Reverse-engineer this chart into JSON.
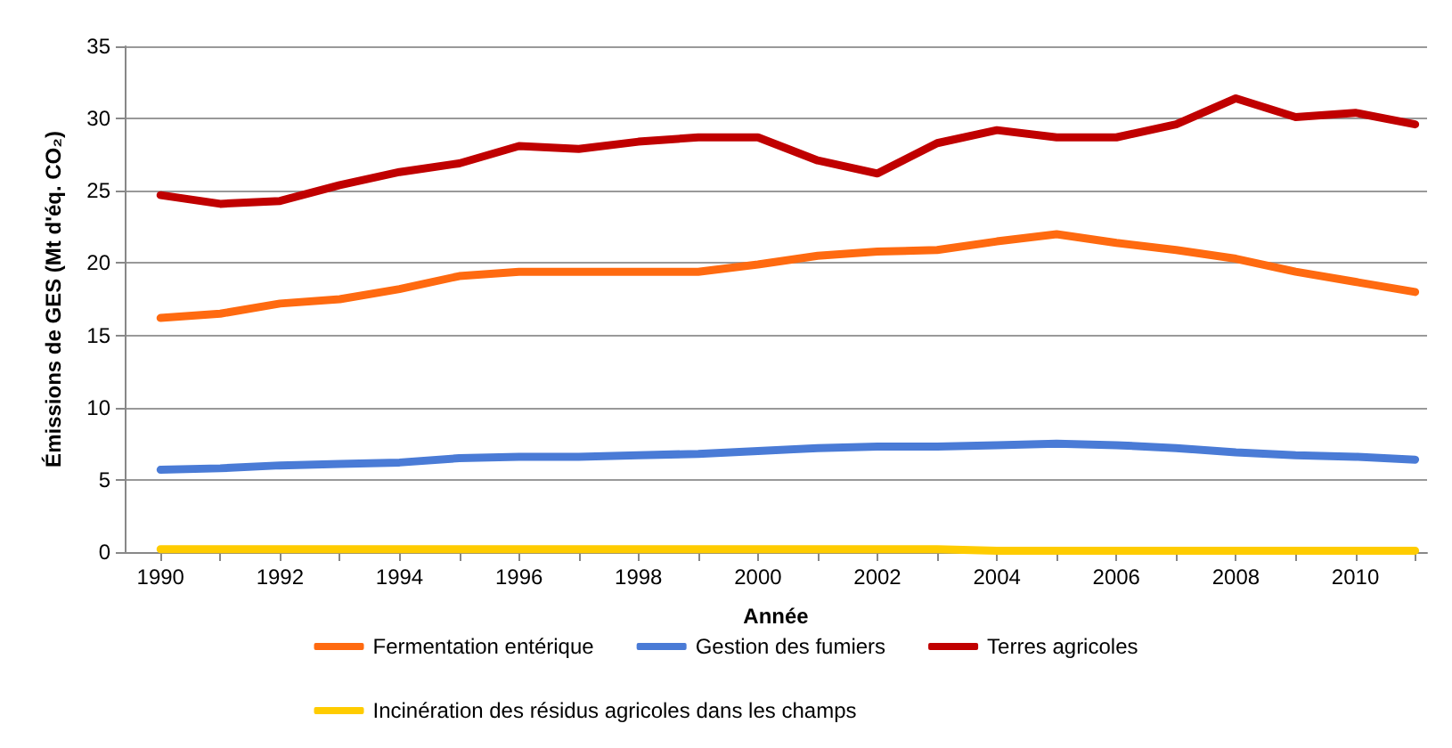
{
  "chart_data": {
    "type": "line",
    "xlabel": "Année",
    "ylabel": "Émissions de GES (Mt d'éq. CO₂)",
    "x": [
      1990,
      1991,
      1992,
      1993,
      1994,
      1995,
      1996,
      1997,
      1998,
      1999,
      2000,
      2001,
      2002,
      2003,
      2004,
      2005,
      2006,
      2007,
      2008,
      2009,
      2010,
      2011
    ],
    "series": [
      {
        "name": "Fermentation entérique",
        "color": "#ff6a10",
        "values": [
          16.2,
          16.5,
          17.2,
          17.5,
          18.2,
          19.1,
          19.4,
          19.4,
          19.4,
          19.4,
          19.9,
          20.5,
          20.8,
          20.9,
          21.5,
          22.0,
          21.4,
          20.9,
          20.3,
          19.4,
          18.7,
          18.0
        ]
      },
      {
        "name": "Gestion des fumiers",
        "color": "#4a7bd6",
        "values": [
          5.7,
          5.8,
          6.0,
          6.1,
          6.2,
          6.5,
          6.6,
          6.6,
          6.7,
          6.8,
          7.0,
          7.2,
          7.3,
          7.3,
          7.4,
          7.5,
          7.4,
          7.2,
          6.9,
          6.7,
          6.6,
          6.4
        ]
      },
      {
        "name": "Terres agricoles",
        "color": "#c00000",
        "values": [
          24.7,
          24.1,
          24.3,
          25.4,
          26.3,
          26.9,
          28.1,
          27.9,
          28.4,
          28.7,
          28.7,
          27.1,
          26.2,
          28.3,
          29.2,
          28.7,
          28.7,
          29.6,
          31.4,
          30.1,
          30.4,
          29.6
        ]
      },
      {
        "name": "Incinération des résidus agricoles dans les champs",
        "color": "#ffcc00",
        "values": [
          0.2,
          0.2,
          0.2,
          0.2,
          0.2,
          0.2,
          0.2,
          0.2,
          0.2,
          0.2,
          0.2,
          0.2,
          0.2,
          0.2,
          0.1,
          0.1,
          0.1,
          0.1,
          0.1,
          0.1,
          0.1,
          0.1
        ]
      }
    ],
    "xlim": [
      1989.4,
      2011.2
    ],
    "xticks": [
      1990,
      {
        "value": 1991,
        "label": null
      },
      1992,
      {
        "value": 1993,
        "label": null
      },
      1994,
      {
        "value": 1995,
        "label": null
      },
      1996,
      {
        "value": 1997,
        "label": null
      },
      1998,
      {
        "value": 1999,
        "label": null
      },
      2000,
      {
        "value": 2001,
        "label": null
      },
      2002,
      {
        "value": 2003,
        "label": null
      },
      2004,
      {
        "value": 2005,
        "label": null
      },
      2006,
      {
        "value": 2007,
        "label": null
      },
      2008,
      {
        "value": 2009,
        "label": null
      },
      2010,
      {
        "value": 2011,
        "label": null
      }
    ],
    "ylim": [
      0,
      35
    ],
    "yticks": [
      0,
      5,
      10,
      15,
      20,
      25,
      30,
      35
    ],
    "grid": "y",
    "legend": "bottom",
    "marker": "none",
    "line_style": "solid"
  }
}
